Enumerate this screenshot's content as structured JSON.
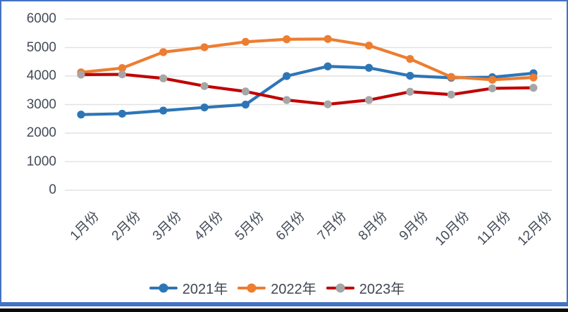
{
  "chart_data": {
    "type": "line",
    "title": "",
    "xlabel": "",
    "ylabel": "",
    "categories": [
      "1月份",
      "2月份",
      "3月份",
      "4月份",
      "5月份",
      "6月份",
      "7月份",
      "8月份",
      "9月份",
      "10月份",
      "11月份",
      "12月份"
    ],
    "series": [
      {
        "name": "2021年",
        "color": "#2E75B6",
        "marker_color": "#2E75B6",
        "values": [
          2650,
          2680,
          2790,
          2900,
          3000,
          4000,
          4340,
          4290,
          4010,
          3940,
          3960,
          4100
        ]
      },
      {
        "name": "2022年",
        "color": "#ED7D31",
        "marker_color": "#ED7D31",
        "values": [
          4130,
          4280,
          4840,
          5010,
          5200,
          5290,
          5300,
          5070,
          4600,
          3970,
          3870,
          3950
        ]
      },
      {
        "name": "2023年",
        "color": "#C00000",
        "marker_color": "#A6A6A6",
        "values": [
          4050,
          4060,
          3920,
          3650,
          3460,
          3160,
          3010,
          3160,
          3450,
          3350,
          3570,
          3590
        ]
      }
    ],
    "ylim": [
      0,
      6000
    ],
    "ytick_interval": 1000,
    "yticks": [
      "0",
      "1000",
      "2000",
      "3000",
      "4000",
      "5000",
      "6000"
    ],
    "grid": "horizontal",
    "gridline_color": "#E2E2E2",
    "xtick_rotation_deg": 45,
    "legend_position": "bottom"
  },
  "frame": {
    "border_color": "#4472C4",
    "bottom_bar_color": "#0a0a0a",
    "background": "#ffffff"
  }
}
